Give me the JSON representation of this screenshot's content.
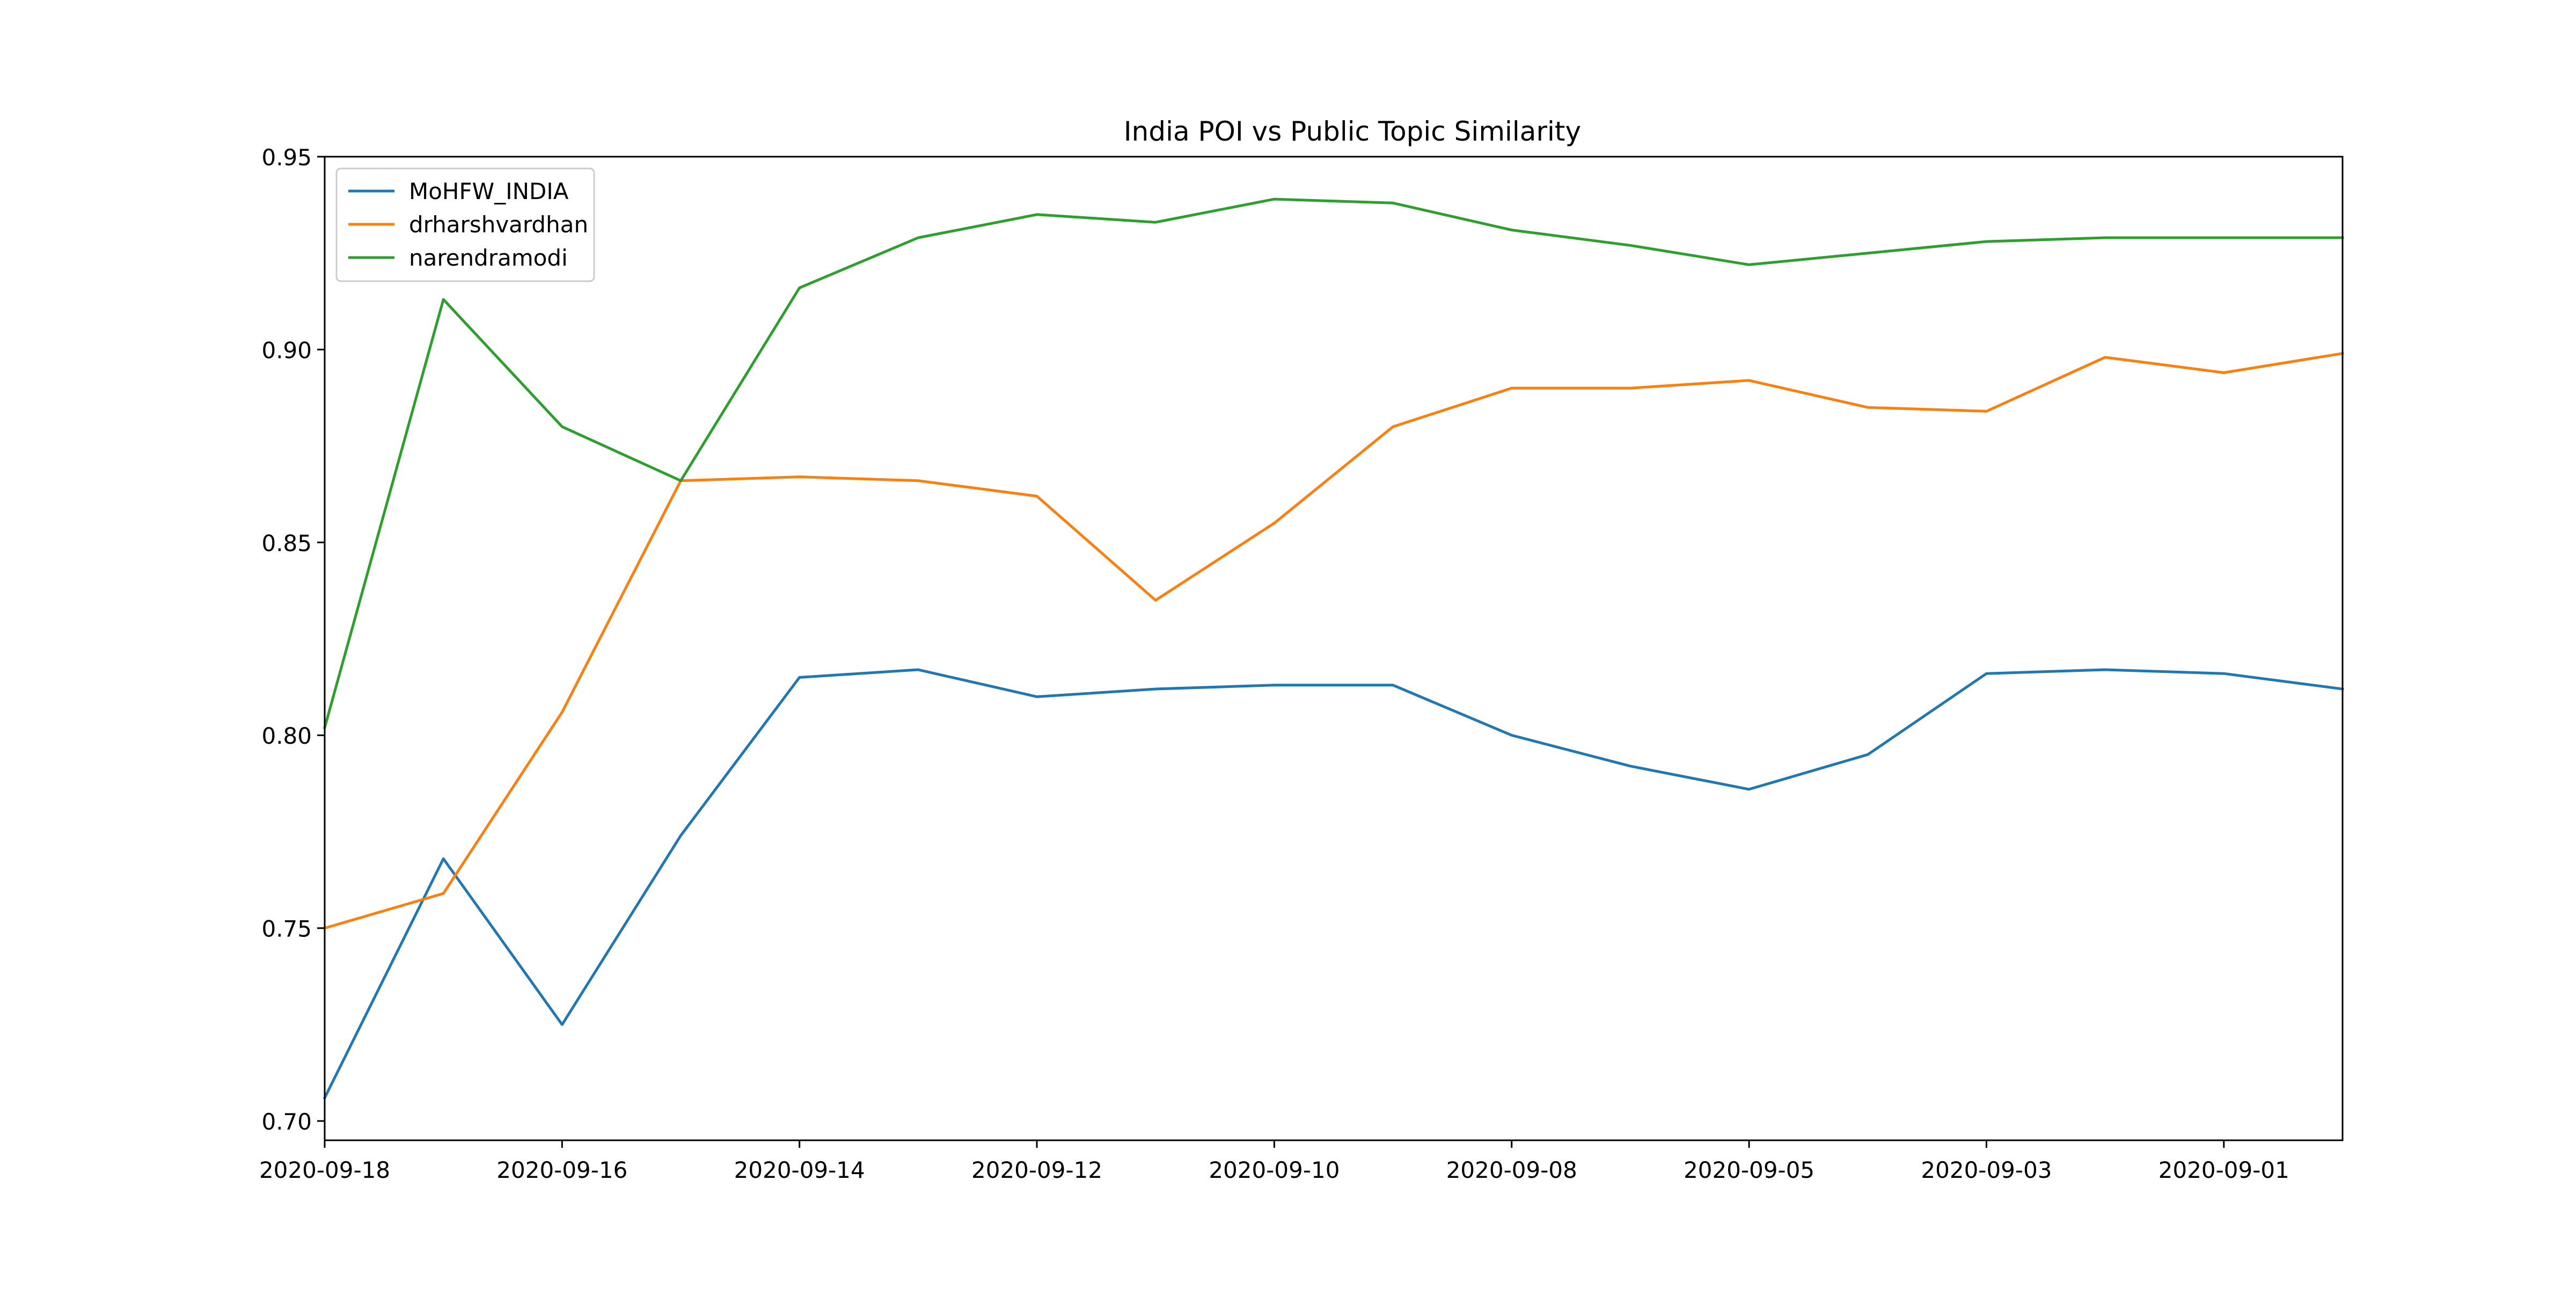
{
  "chart_data": {
    "type": "line",
    "title": "India POI vs Public Topic Similarity",
    "xlabel": "",
    "ylabel": "",
    "x": [
      "2020-09-18",
      "2020-09-17",
      "2020-09-16",
      "2020-09-15",
      "2020-09-14",
      "2020-09-13",
      "2020-09-12",
      "2020-09-11",
      "2020-09-10",
      "2020-09-09",
      "2020-09-08",
      "2020-09-07",
      "2020-09-05",
      "2020-09-04",
      "2020-09-03",
      "2020-09-02",
      "2020-09-01",
      "2020-08-31"
    ],
    "x_ticks": [
      "2020-09-18",
      "2020-09-16",
      "2020-09-14",
      "2020-09-12",
      "2020-09-10",
      "2020-09-08",
      "2020-09-05",
      "2020-09-03",
      "2020-09-01"
    ],
    "x_tick_positions": [
      0,
      2,
      4,
      6,
      8,
      10,
      12,
      14,
      16
    ],
    "ylim": [
      0.695,
      0.95
    ],
    "y_ticks": [
      "0.70",
      "0.75",
      "0.80",
      "0.85",
      "0.90",
      "0.95"
    ],
    "y_tick_values": [
      0.7,
      0.75,
      0.8,
      0.85,
      0.9,
      0.95
    ],
    "grid": false,
    "legend_position": "top-left",
    "series": [
      {
        "name": "MoHFW_INDIA",
        "color": "#1f77b4",
        "values": [
          0.706,
          0.768,
          0.725,
          0.774,
          0.815,
          0.817,
          0.81,
          0.812,
          0.813,
          0.813,
          0.8,
          0.792,
          0.786,
          0.795,
          0.816,
          0.817,
          0.816,
          0.812
        ]
      },
      {
        "name": "drharshvardhan",
        "color": "#ff7f0e",
        "values": [
          0.75,
          0.759,
          0.806,
          0.866,
          0.867,
          0.866,
          0.862,
          0.835,
          0.855,
          0.88,
          0.89,
          0.89,
          0.892,
          0.885,
          0.884,
          0.898,
          0.894,
          0.899
        ]
      },
      {
        "name": "narendramodi",
        "color": "#2ca02c",
        "values": [
          0.802,
          0.913,
          0.88,
          0.866,
          0.916,
          0.929,
          0.935,
          0.933,
          0.939,
          0.938,
          0.931,
          0.927,
          0.922,
          0.925,
          0.928,
          0.929,
          0.929,
          0.929
        ]
      }
    ]
  }
}
